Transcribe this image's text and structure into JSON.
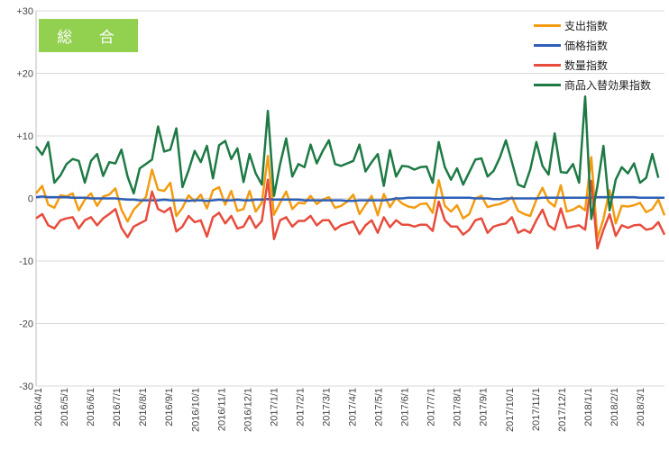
{
  "badge_label": "総 合",
  "chart_data": {
    "type": "line",
    "title": "",
    "xlabel": "",
    "ylabel": "",
    "ylim": [
      -30,
      30
    ],
    "y_ticks": [
      "+30",
      "+20",
      "+10",
      "0",
      "-10",
      "-20",
      "-30"
    ],
    "y_tick_values": [
      30,
      20,
      10,
      0,
      -10,
      -20,
      -30
    ],
    "grid": "horizontal",
    "legend": "top-right",
    "x_tick_labels": [
      "2016/4/1",
      "2016/5/1",
      "2016/6/1",
      "2016/7/1",
      "2016/8/1",
      "2016/9/1",
      "2016/10/1",
      "2016/11/1",
      "2016/12/1",
      "2017/1/1",
      "2017/2/1",
      "2017/3/1",
      "2017/4/1",
      "2017/5/1",
      "2017/6/1",
      "2017/7/1",
      "2017/8/1",
      "2017/9/1",
      "2017/10/1",
      "2017/11/1",
      "2017/12/1",
      "2018/1/1",
      "2018/2/1",
      "2018/3/1"
    ],
    "series": [
      {
        "name": "支出指数",
        "color": "#f39c12",
        "values": [
          0.8,
          2,
          -1,
          -1.5,
          0.5,
          0.3,
          0.8,
          -1.9,
          -0.2,
          0.8,
          -1.2,
          0.3,
          0.6,
          1.6,
          -1.8,
          -3.7,
          -1.8,
          -0.8,
          0.2,
          4.6,
          1.4,
          1.2,
          2.5,
          -2.8,
          -1.5,
          0.5,
          -0.5,
          0.6,
          -1.6,
          1.3,
          1.8,
          -1,
          1.2,
          -2,
          -1.7,
          1.2,
          -2.1,
          -0.7,
          6.8,
          -2.6,
          -0.7,
          1.1,
          -1.7,
          -0.7,
          -0.8,
          0.4,
          -0.9,
          -0.2,
          0.2,
          -1.5,
          -1.2,
          -0.5,
          0.6,
          -2.5,
          -1,
          0.4,
          -2.7,
          0.7,
          -1.4,
          0.1,
          -0.8,
          -1.3,
          -1.5,
          -0.9,
          -0.8,
          -2.3,
          2.9,
          -1.2,
          -2.1,
          -1.1,
          -3.2,
          -2.5,
          0,
          0.4,
          -1.4,
          -1.1,
          -0.9,
          -0.5,
          0.2,
          -2,
          -2.5,
          -2.8,
          -0.2,
          1.7,
          -0.5,
          -1.3,
          2.1,
          -2.1,
          -1.8,
          -1.2,
          -1.9,
          6.6,
          -6.4,
          -3.3,
          1.3,
          -4,
          -1.2,
          -1.3,
          -1.1,
          -0.7,
          -2.2,
          -1.7,
          -0.2,
          -2.7
        ]
      },
      {
        "name": "価格指数",
        "color": "#2e5fb7",
        "values": [
          0.2,
          0.3,
          0.2,
          0.2,
          0.2,
          0.2,
          0.1,
          0.1,
          0.1,
          0,
          0,
          0,
          0,
          0,
          -0.1,
          -0.2,
          -0.2,
          -0.3,
          -0.3,
          -0.3,
          -0.3,
          -0.2,
          -0.3,
          -0.3,
          -0.3,
          -0.4,
          -0.3,
          -0.3,
          -0.4,
          -0.3,
          -0.2,
          -0.3,
          -0.3,
          -0.2,
          -0.3,
          -0.3,
          -0.2,
          -0.2,
          -0.1,
          -0.2,
          -0.2,
          -0.2,
          -0.2,
          -0.2,
          -0.3,
          -0.3,
          -0.3,
          -0.3,
          -0.3,
          -0.3,
          -0.3,
          -0.4,
          -0.4,
          -0.3,
          -0.3,
          -0.3,
          -0.3,
          -0.3,
          -0.2,
          0,
          0,
          0.1,
          0.1,
          0.1,
          0.1,
          0.1,
          0.1,
          0.1,
          0.1,
          0.1,
          0.1,
          0.1,
          0,
          0,
          0,
          -0.1,
          -0.1,
          0,
          0,
          0,
          0,
          0,
          0,
          0.1,
          0.1,
          0.1,
          0.1,
          0.1,
          0.1,
          0.1,
          0.1,
          0.1,
          0.2,
          0.2,
          0.2,
          0.2,
          0.2,
          0.2,
          0.2,
          0.1,
          0.1,
          0.1,
          0.1,
          0.1
        ]
      },
      {
        "name": "数量指数",
        "color": "#e74c3c",
        "values": [
          -3.2,
          -2.5,
          -4.3,
          -4.8,
          -3.5,
          -3.2,
          -3,
          -4.8,
          -3.5,
          -3,
          -4.3,
          -3.2,
          -2.5,
          -1.7,
          -4.7,
          -6.2,
          -4.5,
          -4,
          -3.5,
          1.1,
          -1.7,
          -2.2,
          -1.5,
          -5.3,
          -4.5,
          -2.8,
          -3.8,
          -3.5,
          -6.1,
          -3,
          -2.3,
          -4,
          -2.8,
          -4.8,
          -4.5,
          -2.8,
          -4.7,
          -3.6,
          3,
          -6.5,
          -3.5,
          -3,
          -4.5,
          -3.6,
          -3.6,
          -2.8,
          -4.3,
          -3.5,
          -3.5,
          -5,
          -4.3,
          -4,
          -3.7,
          -5.7,
          -4.3,
          -3.5,
          -5.5,
          -3,
          -4.6,
          -3.5,
          -4.2,
          -4.2,
          -4.5,
          -4.2,
          -4.2,
          -5.2,
          -0.5,
          -3.5,
          -4.5,
          -4.5,
          -5.8,
          -5,
          -3.5,
          -3.2,
          -5.5,
          -4.5,
          -4.2,
          -4,
          -3,
          -5.5,
          -5,
          -5.5,
          -3.5,
          -1.8,
          -4.3,
          -5,
          -1.6,
          -4.7,
          -4.5,
          -4.3,
          -5,
          2.8,
          -8,
          -5,
          -2.5,
          -6,
          -4.3,
          -4.7,
          -4.3,
          -4.2,
          -5,
          -4.8,
          -3.8,
          -5.8
        ]
      },
      {
        "name": "商品入替効果指数",
        "color": "#1e7a45",
        "values": [
          8.3,
          7,
          9,
          2.5,
          3.7,
          5.5,
          6.3,
          6,
          2.5,
          6,
          7.1,
          3.6,
          5.8,
          5.6,
          7.8,
          3.5,
          0.8,
          4.8,
          5.5,
          6.2,
          11.5,
          7.5,
          7.8,
          11.2,
          1.8,
          4.5,
          7.6,
          5.8,
          8.4,
          3.2,
          8.5,
          9.2,
          6.3,
          8,
          2.6,
          7.1,
          4,
          2.2,
          14,
          0.4,
          5.5,
          9.6,
          3.5,
          5.5,
          5,
          8.6,
          5.6,
          7.6,
          9.3,
          5.5,
          5.2,
          5.6,
          6,
          8.6,
          4.3,
          5.8,
          7.1,
          2,
          7.7,
          3.5,
          5.2,
          5.1,
          4.6,
          5,
          5.1,
          2.5,
          9,
          5,
          3,
          4.8,
          2.2,
          4.2,
          6.2,
          6.4,
          3.5,
          4.4,
          6.5,
          9.3,
          5.8,
          2.2,
          1.8,
          4.6,
          9,
          5.2,
          3.8,
          10.4,
          4.2,
          4.1,
          5.5,
          2.5,
          16.3,
          -3.3,
          2,
          8.4,
          -1.9,
          3,
          5,
          4,
          5.6,
          2.5,
          3.3,
          7.1,
          3.3
        ]
      }
    ]
  }
}
